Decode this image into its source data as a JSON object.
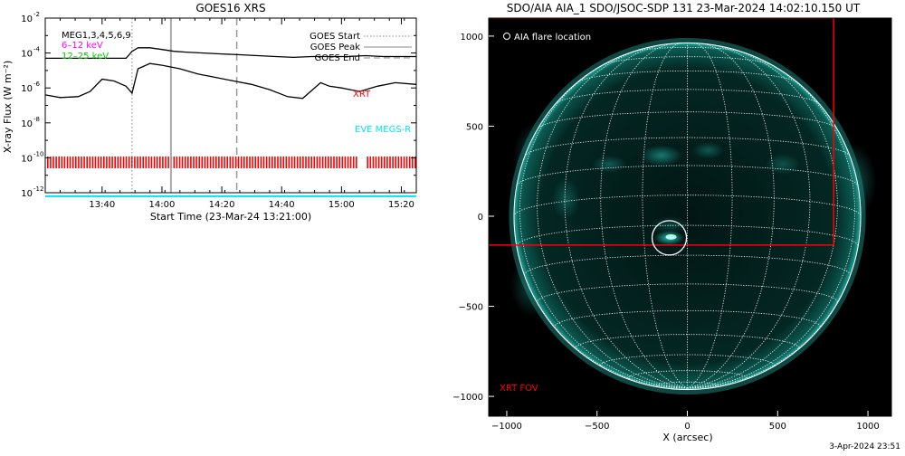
{
  "footer_timestamp": "3-Apr-2024 23:51",
  "colors": {
    "goes_line": "#000000",
    "xrt": "#ff0000",
    "eve": "#00e5ee",
    "low_energy": "#ff00ff",
    "mid_energy": "#00cc00",
    "peak_line": "#aaaaaa",
    "fov_box": "#ff0000",
    "disk_glow": "#2fd6c8",
    "grid": "#ffffff"
  },
  "chart_data": [
    {
      "type": "line",
      "title": "GOES16 XRS",
      "xlabel": "Start Time (23-Mar-24 13:21:00)",
      "ylabel": "X-ray Flux (W m⁻²)",
      "y_scale": "log",
      "ylim_exponent": [
        -12,
        -2
      ],
      "y_ticks": [
        {
          "exp": -12,
          "label": "10",
          "sup": "-12"
        },
        {
          "exp": -10,
          "label": "10",
          "sup": "-10"
        },
        {
          "exp": -8,
          "label": "10",
          "sup": "-8"
        },
        {
          "exp": -6,
          "label": "10",
          "sup": "-6"
        },
        {
          "exp": -4,
          "label": "10",
          "sup": "-4"
        },
        {
          "exp": -2,
          "label": "10",
          "sup": "-2"
        }
      ],
      "xlim": [
        "13:21",
        "15:25"
      ],
      "x_ticks": [
        "13:40",
        "14:00",
        "14:20",
        "14:40",
        "15:00",
        "15:20"
      ],
      "legend": {
        "position": "top-right",
        "entries": [
          "GOES Start",
          "GOES Peak",
          "GOES End"
        ]
      },
      "corner_labels": [
        "MEG1,3,4,5,6,9",
        "6–12 keV",
        "12–25 keV"
      ],
      "markers": {
        "goes_start": "13:50",
        "goes_peak": "14:03",
        "goes_end": "14:25"
      },
      "annotations": [
        "XRT",
        "EVE MEGS-R"
      ],
      "series": [
        {
          "name": "",
          "x": [
            "13:21",
            "13:30",
            "13:40",
            "13:48",
            "13:50",
            "13:52",
            "13:56",
            "14:00",
            "14:04",
            "14:08",
            "14:14",
            "14:20",
            "14:26",
            "14:32",
            "14:38",
            "14:44",
            "14:50",
            "14:56",
            "15:02",
            "15:08",
            "15:14",
            "15:20",
            "15:25"
          ],
          "y_exp": [
            -4.3,
            -4.3,
            -4.3,
            -4.3,
            -3.9,
            -3.7,
            -3.7,
            -3.8,
            -3.9,
            -3.95,
            -4.0,
            -4.05,
            -4.1,
            -4.15,
            -4.2,
            -4.25,
            -4.2,
            -4.2,
            -4.2,
            -4.15,
            -4.2,
            -4.2,
            -4.2
          ]
        },
        {
          "name": "",
          "x": [
            "13:21",
            "13:26",
            "13:32",
            "13:36",
            "13:40",
            "13:44",
            "13:48",
            "13:50",
            "13:52",
            "13:56",
            "14:00",
            "14:06",
            "14:12",
            "14:18",
            "14:24",
            "14:30",
            "14:36",
            "14:42",
            "14:47",
            "14:51",
            "14:53",
            "14:56",
            "15:00",
            "15:06",
            "15:12",
            "15:18",
            "15:25"
          ],
          "y_exp": [
            -6.4,
            -6.55,
            -6.5,
            -6.2,
            -5.5,
            -5.6,
            -5.9,
            -6.3,
            -4.9,
            -4.6,
            -4.7,
            -4.9,
            -5.2,
            -5.4,
            -5.6,
            -5.8,
            -6.1,
            -6.5,
            -6.6,
            -6.0,
            -5.7,
            -5.9,
            -6.0,
            -6.2,
            -5.9,
            -5.7,
            -5.8
          ]
        }
      ],
      "xrt_bar_gaps": [
        [
          "15:05",
          "15:08"
        ]
      ],
      "eve_level_exp": -12.2
    },
    {
      "type": "scatter",
      "title": "SDO/AIA AIA_1 SDO/JSOC-SDP 131 23-Mar-2024 14:02:10.150 UT",
      "xlabel": "X (arcsec)",
      "ylabel": "",
      "xlim": [
        -1100,
        1130
      ],
      "ylim": [
        -1110,
        1100
      ],
      "x_ticks": [
        -1000,
        -500,
        0,
        500,
        1000
      ],
      "y_ticks": [
        -1000,
        -500,
        0,
        500,
        1000
      ],
      "solar_radius": 960,
      "legend": {
        "position": "top-left",
        "entries": [
          "AIA flare location"
        ]
      },
      "flare_location": {
        "x": -100,
        "y": -120
      },
      "xrt_fov_label": "XRT FOV",
      "xrt_fov": {
        "x0": -1110,
        "x1": 810,
        "y0": -160,
        "y1": 1100
      }
    }
  ]
}
